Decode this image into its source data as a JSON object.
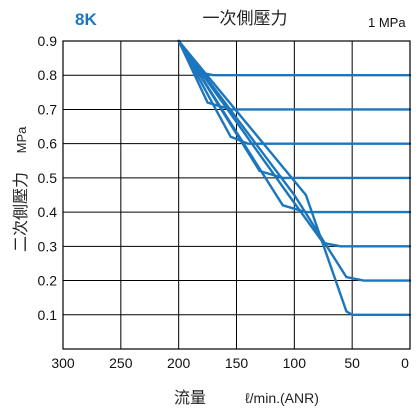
{
  "chart_data": {
    "type": "line",
    "title": "一次側壓力",
    "model_label": "8K",
    "inlet_pressure_label": "1 MPa",
    "xlabel": "流量",
    "xlabel_unit": "ℓ/min.(ANR)",
    "ylabel": "二次側壓力",
    "ylabel_unit": "MPa",
    "xlim": [
      300,
      0
    ],
    "ylim": [
      0,
      0.9
    ],
    "x_ticks": [
      300,
      250,
      200,
      150,
      100,
      50,
      0
    ],
    "x_tick_labels": [
      "300",
      "250",
      "200",
      "150",
      "100",
      "50",
      "0"
    ],
    "y_ticks": [
      0.1,
      0.2,
      0.3,
      0.4,
      0.5,
      0.6,
      0.7,
      0.8,
      0.9
    ],
    "y_tick_labels": [
      "0.1",
      "0.2",
      "0.3",
      "0.4",
      "0.5",
      "0.6",
      "0.7",
      "0.8",
      "0.9"
    ],
    "grid": true,
    "series": [
      {
        "x": [
          0,
          50,
          55,
          90,
          200
        ],
        "y": [
          0.1,
          0.1,
          0.11,
          0.45,
          0.9
        ]
      },
      {
        "x": [
          0,
          40,
          55,
          100,
          200
        ],
        "y": [
          0.2,
          0.2,
          0.21,
          0.45,
          0.9
        ]
      },
      {
        "x": [
          0,
          60,
          75,
          105,
          200
        ],
        "y": [
          0.3,
          0.3,
          0.31,
          0.45,
          0.9
        ]
      },
      {
        "x": [
          0,
          90,
          110,
          200
        ],
        "y": [
          0.4,
          0.4,
          0.42,
          0.9
        ]
      },
      {
        "x": [
          0,
          110,
          130,
          200
        ],
        "y": [
          0.5,
          0.5,
          0.52,
          0.9
        ]
      },
      {
        "x": [
          0,
          140,
          155,
          200
        ],
        "y": [
          0.6,
          0.6,
          0.62,
          0.9
        ]
      },
      {
        "x": [
          0,
          155,
          175,
          200
        ],
        "y": [
          0.7,
          0.7,
          0.72,
          0.9
        ]
      },
      {
        "x": [
          0,
          170,
          185,
          200
        ],
        "y": [
          0.8,
          0.8,
          0.81,
          0.9
        ]
      }
    ],
    "colors": {
      "series": "#1b76bd",
      "model_label": "#1b76bd",
      "grid": "#000000"
    }
  }
}
